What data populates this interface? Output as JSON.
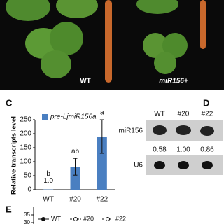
{
  "photo": {
    "labels": [
      "WT",
      "miR156+"
    ]
  },
  "chart_data": {
    "type": "bar",
    "letter": "C",
    "y_label": "Relative transcripts level",
    "categories": [
      "WT",
      "#20",
      "#22"
    ],
    "series": [
      {
        "name": "pre-LjmiR156a",
        "color": "#4a7fc1",
        "values": [
          1,
          82,
          190
        ],
        "errors": [
          null,
          30,
          60
        ],
        "value_labels": [
          "1.0",
          null,
          null
        ]
      }
    ],
    "significance": [
      "b",
      "ab",
      "a"
    ],
    "ylim": [
      0,
      250
    ],
    "yticks": [
      0,
      50,
      100,
      150,
      200,
      250
    ]
  },
  "blot": {
    "letter": "D",
    "lanes": [
      "WT",
      "#20",
      "#22"
    ],
    "rows": [
      "miR156",
      "U6"
    ],
    "quantification": [
      "0.58",
      "1.00",
      "0.86"
    ]
  },
  "panel_e": {
    "letter": "E",
    "yticks": [
      "35",
      "30"
    ],
    "legend": [
      "WT",
      "#20",
      "#22"
    ]
  }
}
